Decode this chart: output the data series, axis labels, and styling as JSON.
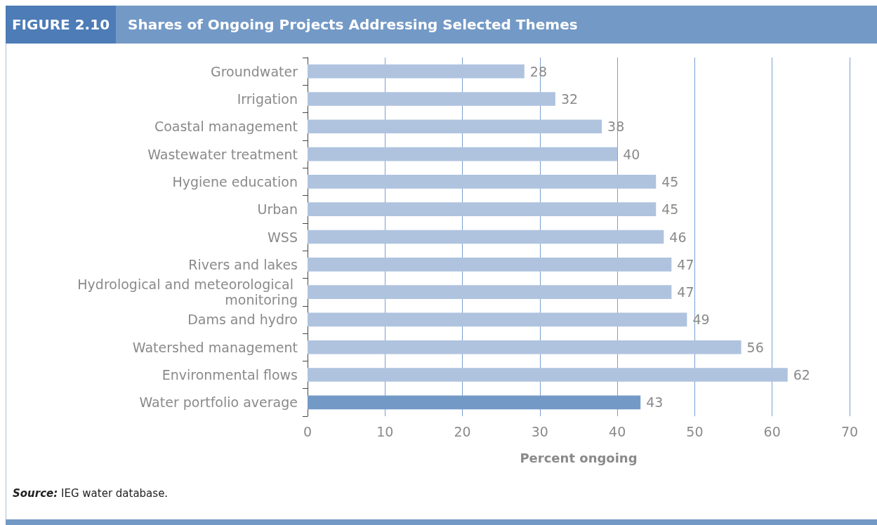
{
  "chart_data": {
    "type": "bar",
    "orientation": "horizontal",
    "title": "Shares of Ongoing Projects Addressing Selected Themes",
    "xlabel": "Percent ongoing",
    "categories": [
      "Groundwater",
      "Irrigation",
      "Coastal management",
      "Wastewater treatment",
      "Hygiene education",
      "Urban",
      "WSS",
      "Rivers and lakes",
      "Hydrological and meteorological monitoring",
      "Dams and hydro",
      "Watershed management",
      "Environmental flows",
      "Water portfolio average"
    ],
    "values": [
      28,
      32,
      38,
      40,
      45,
      45,
      46,
      47,
      47,
      49,
      56,
      62,
      43
    ],
    "colors": [
      "#afc3df",
      "#afc3df",
      "#afc3df",
      "#afc3df",
      "#afc3df",
      "#afc3df",
      "#afc3df",
      "#afc3df",
      "#afc3df",
      "#afc3df",
      "#afc3df",
      "#afc3df",
      "#7399c6"
    ],
    "xlim": [
      0,
      70
    ],
    "xticks": [
      0,
      10,
      20,
      30,
      40,
      50,
      60,
      70
    ],
    "grid": "x",
    "data_labels": true,
    "annotations": [
      "FIGURE 2.10",
      "Source: IEG water database."
    ]
  }
}
